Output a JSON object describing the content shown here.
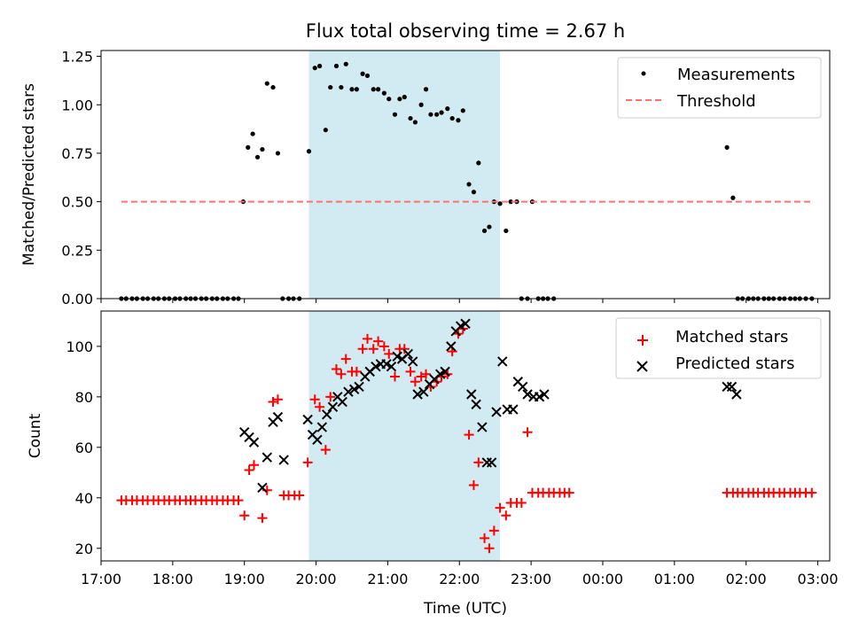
{
  "title": "Flux total observing time = 2.67 h",
  "colors": {
    "measurement": "#000000",
    "threshold": "#ff7070",
    "matched": "#ff0000",
    "predicted": "#000000",
    "span": "#add8e6"
  },
  "chart_data": [
    {
      "type": "scatter",
      "panel": "top",
      "title": "Flux total observing time = 2.67 h",
      "xlabel": "",
      "ylabel": "Matched/Predicted stars",
      "xlim": [
        "17:00",
        "03:10"
      ],
      "ylim": [
        0,
        1.28
      ],
      "x_ticks": [
        "17:00",
        "18:00",
        "19:00",
        "20:00",
        "21:00",
        "22:00",
        "23:00",
        "00:00",
        "01:00",
        "02:00",
        "03:00"
      ],
      "y_ticks": [
        "0.00",
        "0.25",
        "0.50",
        "0.75",
        "1.00",
        "1.25"
      ],
      "shaded_interval": [
        "19:54",
        "22:34"
      ],
      "legend_position": "top-right",
      "series": [
        {
          "name": "Measurements",
          "marker": "dot",
          "x": [
            "17:17",
            "17:21",
            "17:26",
            "17:30",
            "17:35",
            "17:39",
            "17:44",
            "17:48",
            "17:53",
            "17:57",
            "18:02",
            "18:06",
            "18:11",
            "18:15",
            "18:19",
            "18:24",
            "18:28",
            "18:33",
            "18:37",
            "18:42",
            "18:46",
            "18:51",
            "18:55",
            "18:59",
            "19:03",
            "19:07",
            "19:11",
            "19:15",
            "19:19",
            "19:24",
            "19:28",
            "19:32",
            "19:37",
            "19:41",
            "19:46",
            "19:54",
            "19:59",
            "20:03",
            "20:08",
            "20:12",
            "20:17",
            "20:21",
            "20:25",
            "20:30",
            "20:34",
            "20:39",
            "20:43",
            "20:48",
            "20:52",
            "20:57",
            "21:01",
            "21:06",
            "21:10",
            "21:14",
            "21:19",
            "21:23",
            "21:28",
            "21:32",
            "21:36",
            "21:41",
            "21:45",
            "21:50",
            "21:54",
            "21:59",
            "22:03",
            "22:08",
            "22:12",
            "22:16",
            "22:21",
            "22:25",
            "22:29",
            "22:34",
            "22:39",
            "22:43",
            "22:48",
            "22:52",
            "22:57",
            "23:01",
            "23:06",
            "23:10",
            "23:14",
            "23:19",
            "01:44",
            "01:49",
            "01:53",
            "01:57",
            "02:02",
            "02:06",
            "02:10",
            "02:15",
            "02:19",
            "02:23",
            "02:28",
            "02:32",
            "02:37",
            "02:41",
            "02:45",
            "02:50",
            "02:55"
          ],
          "y": [
            0,
            0,
            0,
            0,
            0,
            0,
            0,
            0,
            0,
            0,
            0,
            0,
            0,
            0,
            0,
            0,
            0,
            0,
            0,
            0,
            0,
            0,
            0,
            0.5,
            0.78,
            0.85,
            0.73,
            0.77,
            1.11,
            1.09,
            0.75,
            0,
            0,
            0,
            0,
            0.76,
            1.19,
            1.2,
            0.87,
            1.09,
            1.2,
            1.09,
            1.21,
            1.08,
            1.08,
            1.16,
            1.15,
            1.08,
            1.08,
            1.06,
            1.03,
            0.95,
            1.03,
            1.04,
            0.93,
            0.91,
            1.0,
            1.08,
            0.95,
            0.95,
            0.96,
            0.98,
            0.93,
            0.92,
            0.97,
            0.59,
            0.55,
            0.7,
            0.35,
            0.37,
            0.5,
            0.49,
            0.35,
            0.5,
            0.5,
            0,
            0,
            0.5,
            0,
            0,
            0,
            0,
            0.78,
            0.52,
            0,
            0,
            0,
            0,
            0,
            0,
            0,
            0,
            0,
            0,
            0,
            0,
            0,
            0,
            0
          ]
        },
        {
          "name": "Threshold",
          "style": "dashed",
          "x": [
            "17:17",
            "02:55"
          ],
          "y": [
            0.5,
            0.5
          ]
        }
      ]
    },
    {
      "type": "scatter",
      "panel": "bottom",
      "xlabel": "Time (UTC)",
      "ylabel": "Count",
      "xlim": [
        "17:00",
        "03:10"
      ],
      "ylim": [
        15,
        114
      ],
      "x_ticks": [
        "17:00",
        "18:00",
        "19:00",
        "20:00",
        "21:00",
        "22:00",
        "23:00",
        "00:00",
        "01:00",
        "02:00",
        "03:00"
      ],
      "y_ticks": [
        "20",
        "40",
        "60",
        "80",
        "100"
      ],
      "shaded_interval": [
        "19:54",
        "22:34"
      ],
      "legend_position": "top-right",
      "series": [
        {
          "name": "Matched stars",
          "marker": "plus",
          "x": [
            "17:17",
            "17:21",
            "17:26",
            "17:30",
            "17:35",
            "17:39",
            "17:44",
            "17:48",
            "17:53",
            "17:57",
            "18:02",
            "18:06",
            "18:11",
            "18:15",
            "18:19",
            "18:24",
            "18:28",
            "18:33",
            "18:37",
            "18:42",
            "18:46",
            "18:51",
            "18:55",
            "19:00",
            "19:04",
            "19:08",
            "19:15",
            "19:19",
            "19:24",
            "19:28",
            "19:33",
            "19:37",
            "19:42",
            "19:46",
            "19:53",
            "19:59",
            "20:03",
            "20:08",
            "20:12",
            "20:17",
            "20:21",
            "20:25",
            "20:30",
            "20:34",
            "20:39",
            "20:43",
            "20:48",
            "20:52",
            "20:57",
            "21:01",
            "21:06",
            "21:10",
            "21:14",
            "21:19",
            "21:23",
            "21:28",
            "21:32",
            "21:36",
            "21:41",
            "21:45",
            "21:50",
            "21:54",
            "21:59",
            "22:03",
            "22:08",
            "22:12",
            "22:16",
            "22:21",
            "22:25",
            "22:29",
            "22:34",
            "22:39",
            "22:43",
            "22:48",
            "22:52",
            "22:57",
            "23:01",
            "23:06",
            "23:10",
            "23:15",
            "23:19",
            "23:24",
            "23:28",
            "23:32",
            "01:44",
            "01:49",
            "01:53",
            "01:57",
            "02:02",
            "02:06",
            "02:10",
            "02:15",
            "02:19",
            "02:23",
            "02:28",
            "02:32",
            "02:37",
            "02:41",
            "02:45",
            "02:50",
            "02:55"
          ],
          "y": [
            39,
            39,
            39,
            39,
            39,
            39,
            39,
            39,
            39,
            39,
            39,
            39,
            39,
            39,
            39,
            39,
            39,
            39,
            39,
            39,
            39,
            39,
            39,
            33,
            51,
            53,
            32,
            43,
            78,
            79,
            41,
            41,
            41,
            41,
            54,
            79,
            76,
            59,
            80,
            91,
            89,
            95,
            90,
            90,
            99,
            103,
            99,
            102,
            100,
            97,
            88,
            99,
            99,
            90,
            86,
            88,
            89,
            84,
            86,
            88,
            89,
            98,
            105,
            107,
            65,
            45,
            54,
            24,
            20,
            27,
            36,
            33,
            38,
            38,
            38,
            66,
            42,
            42,
            42,
            42,
            42,
            42,
            42,
            42,
            42,
            42,
            42,
            42,
            42,
            42,
            42,
            42,
            42,
            42,
            42,
            42,
            42,
            42,
            42,
            42,
            42
          ]
        },
        {
          "name": "Predicted stars",
          "marker": "x",
          "x": [
            "19:00",
            "19:04",
            "19:08",
            "19:15",
            "19:19",
            "19:24",
            "19:28",
            "19:33",
            "19:53",
            "19:57",
            "20:01",
            "20:05",
            "20:09",
            "20:14",
            "20:18",
            "20:22",
            "20:27",
            "20:32",
            "20:36",
            "20:41",
            "20:45",
            "20:50",
            "20:54",
            "20:59",
            "21:03",
            "21:08",
            "21:12",
            "21:17",
            "21:21",
            "21:25",
            "21:30",
            "21:35",
            "21:39",
            "21:44",
            "21:48",
            "21:53",
            "21:57",
            "22:01",
            "22:05",
            "22:10",
            "22:14",
            "22:19",
            "22:23",
            "22:27",
            "22:31",
            "22:36",
            "22:40",
            "22:45",
            "22:49",
            "22:53",
            "22:57",
            "23:02",
            "23:07",
            "23:11",
            "01:44",
            "01:48",
            "01:52"
          ],
          "y": [
            66,
            64,
            62,
            44,
            56,
            70,
            72,
            55,
            71,
            65,
            63,
            68,
            73,
            76,
            80,
            78,
            82,
            83,
            84,
            88,
            90,
            92,
            93,
            93,
            92,
            96,
            95,
            97,
            94,
            81,
            82,
            85,
            87,
            89,
            90,
            100,
            106,
            108,
            109,
            81,
            77,
            68,
            54,
            54,
            74,
            94,
            75,
            75,
            86,
            84,
            81,
            80,
            80,
            81,
            84,
            84,
            81
          ]
        }
      ]
    }
  ]
}
